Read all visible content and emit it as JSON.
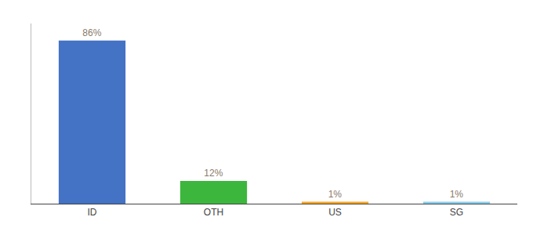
{
  "chart_data": {
    "type": "bar",
    "categories": [
      "ID",
      "OTH",
      "US",
      "SG"
    ],
    "values": [
      86,
      12,
      1,
      1
    ],
    "value_labels": [
      "86%",
      "12%",
      "1%",
      "1%"
    ],
    "colors": [
      "#4472c4",
      "#3cb63c",
      "#f5a623",
      "#87ceeb"
    ],
    "ylim": [
      0,
      95
    ],
    "data_labels": true,
    "tick_labels": "x",
    "grid": false
  }
}
